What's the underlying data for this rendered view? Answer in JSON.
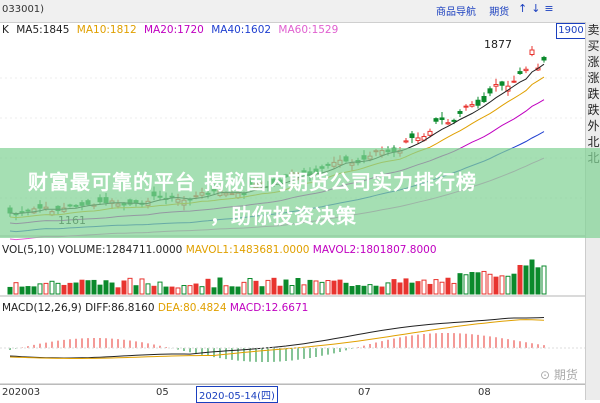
{
  "topbar": {
    "code": "033001)",
    "buttons": [
      "商品导航",
      "期货"
    ],
    "arrows": "↑↓≡"
  },
  "ma_legend": {
    "k": "K",
    "ma5": "MA5:1845",
    "ma10": "MA10:1812",
    "ma20": "MA20:1720",
    "ma40": "MA40:1602",
    "ma60": "MA60:1529"
  },
  "price_tag": "1900",
  "annotations": {
    "high": "1877",
    "low": "1161"
  },
  "vol_legend": {
    "vol": "VOL(5,10)",
    "volume": "VOLUME:1284711.0000",
    "mavol1": "MAVOL1:1483681.0000",
    "mavol2": "MAVOL2:1801807.8000"
  },
  "macd_legend": {
    "macd": "MACD(12,26,9)",
    "diff": "DIFF:86.8160",
    "dea": "DEA:80.4824",
    "macdv": "MACD:12.6671"
  },
  "xaxis": {
    "start": "202003",
    "m05": "05",
    "selected": "2020-05-14(四)",
    "m07": "07",
    "m08": "08"
  },
  "right_panel": [
    "卖",
    "买",
    "涨",
    "涨",
    "跌",
    "跌",
    "外",
    "北",
    "北"
  ],
  "banner": {
    "line1": "财富最可靠的平台 揭秘国内期货公司实力排行榜",
    "line2": "，助你投资决策"
  },
  "watermark": "⊙ 期货",
  "colors": {
    "up": "#e8342f",
    "down": "#0b8a2c",
    "ma5": "#222222",
    "ma10": "#e0a000",
    "ma20": "#c000c0",
    "ma40": "#2040d0",
    "ma60": "#e060d0"
  }
}
